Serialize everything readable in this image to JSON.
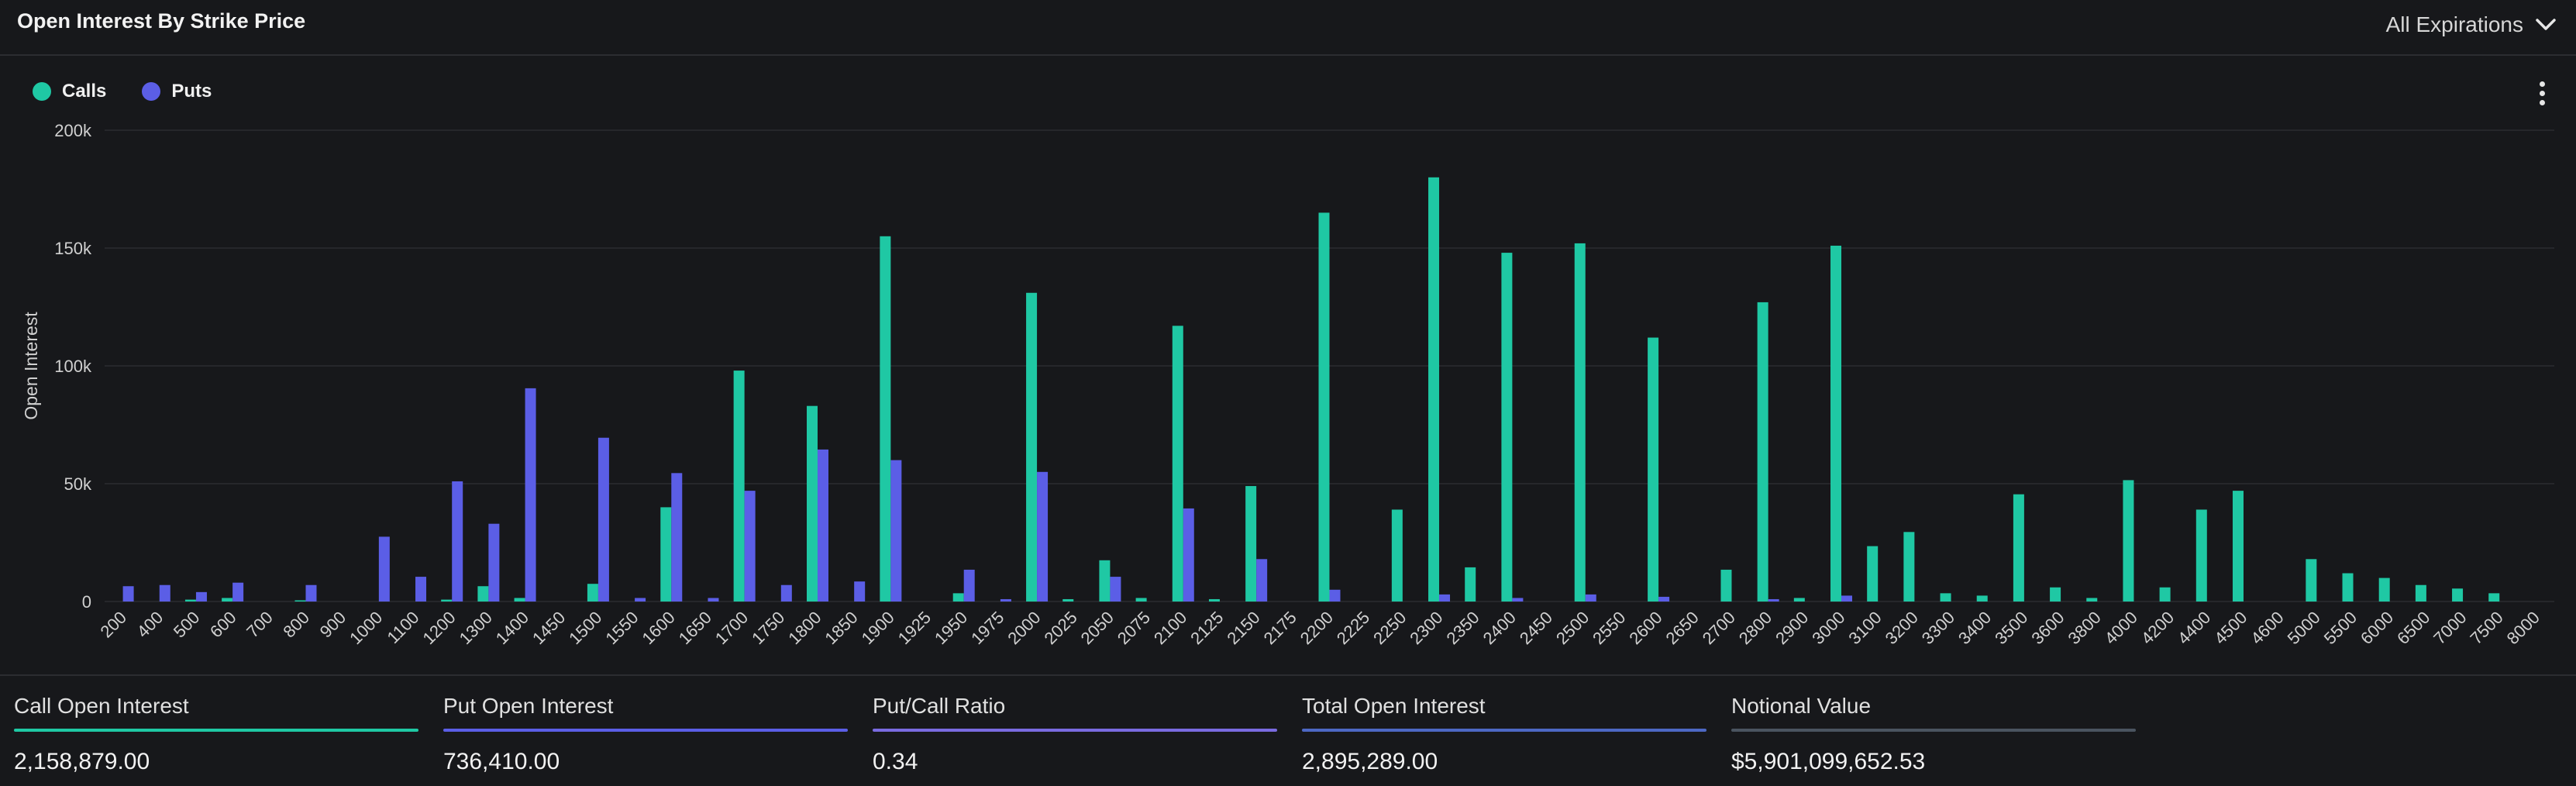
{
  "header": {
    "title": "Open Interest By Strike Price",
    "dropdown_label": "All Expirations"
  },
  "colors": {
    "calls": "#1fc8a4",
    "puts": "#5b5ee6",
    "background": "#17181b",
    "grid": "#26272b",
    "text": "#d0d0d0"
  },
  "legend": {
    "calls_label": "Calls",
    "puts_label": "Puts"
  },
  "chart_data": {
    "type": "bar",
    "xlabel": "",
    "ylabel": "Open Interest",
    "ylim": [
      0,
      200000
    ],
    "yticks": [
      "0",
      "50k",
      "100k",
      "150k",
      "200k"
    ],
    "ytick_values": [
      0,
      50000,
      100000,
      150000,
      200000
    ],
    "grid": true,
    "legend_position": "top-left",
    "categories": [
      "200",
      "400",
      "500",
      "600",
      "700",
      "800",
      "900",
      "1000",
      "1100",
      "1200",
      "1300",
      "1400",
      "1450",
      "1500",
      "1550",
      "1600",
      "1650",
      "1700",
      "1750",
      "1800",
      "1850",
      "1900",
      "1925",
      "1950",
      "1975",
      "2000",
      "2025",
      "2050",
      "2075",
      "2100",
      "2125",
      "2150",
      "2175",
      "2200",
      "2225",
      "2250",
      "2300",
      "2350",
      "2400",
      "2450",
      "2500",
      "2550",
      "2600",
      "2650",
      "2700",
      "2800",
      "2900",
      "3000",
      "3100",
      "3200",
      "3300",
      "3400",
      "3500",
      "3600",
      "3800",
      "4000",
      "4200",
      "4400",
      "4500",
      "4600",
      "5000",
      "5500",
      "6000",
      "6500",
      "7000",
      "7500",
      "8000"
    ],
    "series": [
      {
        "name": "Calls",
        "values": [
          0,
          0,
          800,
          1500,
          0,
          500,
          0,
          0,
          0,
          800,
          6500,
          1500,
          0,
          7500,
          0,
          40000,
          0,
          98000,
          0,
          83000,
          0,
          155000,
          0,
          3500,
          0,
          131000,
          1000,
          17500,
          1500,
          117000,
          1000,
          49000,
          0,
          165000,
          0,
          39000,
          180000,
          14500,
          148000,
          0,
          152000,
          0,
          112000,
          0,
          13500,
          127000,
          1500,
          151000,
          23500,
          29500,
          3500,
          2500,
          45500,
          6000,
          1500,
          51500,
          6000,
          39000,
          47000,
          0,
          18000,
          12000,
          10000,
          7000,
          5500,
          3500,
          0
        ]
      },
      {
        "name": "Puts",
        "values": [
          6500,
          7000,
          4000,
          8000,
          0,
          7000,
          0,
          27500,
          10500,
          51000,
          33000,
          90500,
          0,
          69500,
          1500,
          54500,
          1500,
          47000,
          7000,
          64500,
          8500,
          60000,
          0,
          13500,
          1000,
          55000,
          0,
          10500,
          0,
          39500,
          0,
          18000,
          0,
          5000,
          0,
          0,
          3000,
          0,
          1500,
          0,
          3000,
          0,
          2000,
          0,
          0,
          1000,
          0,
          2500,
          0,
          0,
          0,
          0,
          0,
          0,
          0,
          0,
          0,
          0,
          0,
          0,
          0,
          0,
          0,
          0,
          0,
          0,
          0
        ]
      }
    ]
  },
  "stats": [
    {
      "label": "Call Open Interest",
      "value": "2,158,879.00",
      "color": "#1fc8a4"
    },
    {
      "label": "Put Open Interest",
      "value": "736,410.00",
      "color": "#5b5ee6"
    },
    {
      "label": "Put/Call Ratio",
      "value": "0.34",
      "color": "#7a6be0"
    },
    {
      "label": "Total Open Interest",
      "value": "2,895,289.00",
      "color": "#4d68c4"
    },
    {
      "label": "Notional Value",
      "value": "$5,901,099,652.53",
      "color": "#4a5460"
    }
  ]
}
